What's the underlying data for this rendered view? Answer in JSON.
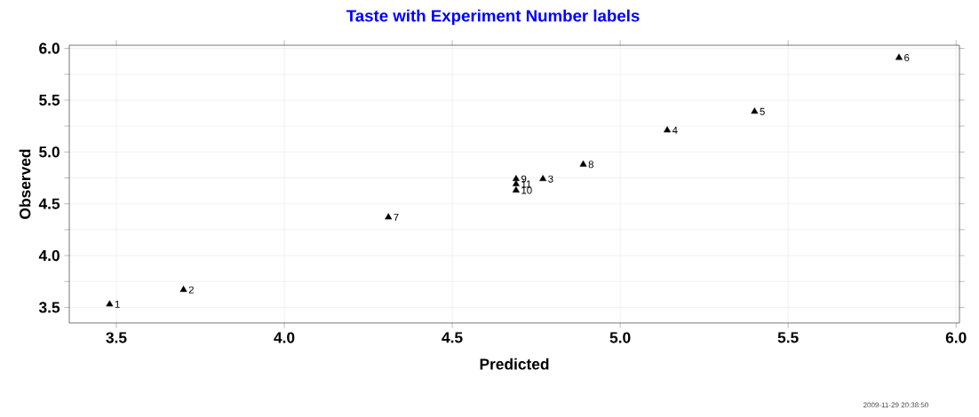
{
  "chart_data": {
    "type": "scatter",
    "title": "Taste with Experiment Number labels",
    "xlabel": "Predicted",
    "ylabel": "Observed",
    "x": [
      3.48,
      3.7,
      4.77,
      5.14,
      5.4,
      5.83,
      4.31,
      4.89,
      4.69,
      4.69,
      4.69
    ],
    "series": [
      {
        "color": "#000000",
        "values": [
          3.53,
          3.67,
          4.74,
          5.21,
          5.39,
          5.91,
          4.37,
          4.88,
          4.74,
          4.63,
          4.69
        ]
      }
    ],
    "marker": "triangle",
    "grid": true,
    "xlim": [
      3.36,
      6.01
    ],
    "ylim": [
      3.35,
      6.03
    ],
    "xticks": [
      3.5,
      {
        "value": 4,
        "label": "4.0"
      },
      4.5,
      {
        "value": 5,
        "label": "5.0"
      },
      5.5,
      {
        "value": 6,
        "label": "6.0"
      }
    ],
    "yticks": [
      3.5,
      {
        "value": 3.75,
        "label": null
      },
      {
        "value": 4,
        "label": "4.0"
      },
      {
        "value": 4.25,
        "label": null
      },
      4.5,
      {
        "value": 4.75,
        "label": null
      },
      {
        "value": 5,
        "label": "5.0"
      },
      {
        "value": 5.25,
        "label": null
      },
      5.5,
      {
        "value": 5.75,
        "label": null
      },
      {
        "value": 6,
        "label": "6.0"
      }
    ],
    "annotations": [
      {
        "text": "1",
        "x": 3.48,
        "y": 3.53
      },
      {
        "text": "2",
        "x": 3.7,
        "y": 3.67
      },
      {
        "text": "3",
        "x": 4.77,
        "y": 4.74
      },
      {
        "text": "4",
        "x": 5.14,
        "y": 5.21
      },
      {
        "text": "5",
        "x": 5.4,
        "y": 5.39
      },
      {
        "text": "6",
        "x": 5.83,
        "y": 5.91
      },
      {
        "text": "7",
        "x": 4.31,
        "y": 4.37
      },
      {
        "text": "8",
        "x": 4.89,
        "y": 4.88
      },
      {
        "text": "9",
        "x": 4.69,
        "y": 4.74
      },
      {
        "text": "10",
        "x": 4.69,
        "y": 4.63
      },
      {
        "text": "11",
        "x": 4.69,
        "y": 4.69
      },
      "2009-11-29 20:38:50"
    ]
  }
}
